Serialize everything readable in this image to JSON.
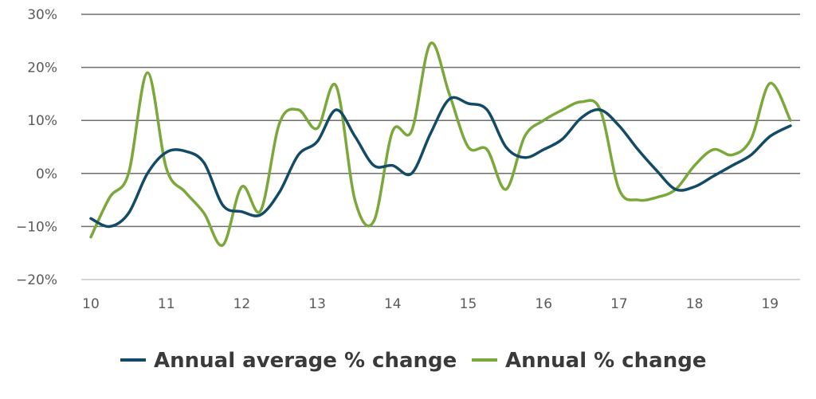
{
  "chart_data": {
    "type": "line",
    "x_tick_labels": [
      "10",
      "11",
      "12",
      "13",
      "14",
      "15",
      "16",
      "17",
      "18",
      "19"
    ],
    "y_tick_labels": [
      "30%",
      "20%",
      "10%",
      "0%",
      "−10%",
      "−20%"
    ],
    "ylim": [
      -20,
      30
    ],
    "xlim": [
      10,
      19.35
    ],
    "y_ticks": [
      30,
      20,
      10,
      0,
      -10,
      -20
    ],
    "grid": true,
    "legend_position": "bottom-center",
    "series": [
      {
        "name": "Annual average % change",
        "color": "#134a66",
        "x": [
          10.0,
          10.25,
          10.5,
          10.75,
          11.0,
          11.25,
          11.5,
          11.75,
          12.0,
          12.25,
          12.5,
          12.75,
          13.0,
          13.25,
          13.5,
          13.75,
          14.0,
          14.25,
          14.5,
          14.75,
          15.0,
          15.25,
          15.5,
          15.75,
          16.0,
          16.25,
          16.5,
          16.75,
          17.0,
          17.25,
          17.5,
          17.75,
          18.0,
          18.25,
          18.5,
          18.75,
          19.0,
          19.27
        ],
        "y": [
          -8.5,
          -10.0,
          -7.5,
          0.0,
          4.0,
          4.2,
          2.0,
          -6.0,
          -7.2,
          -7.8,
          -3.5,
          3.5,
          6.0,
          12.0,
          7.0,
          1.5,
          1.5,
          0.0,
          7.5,
          14.0,
          13.2,
          12.0,
          5.0,
          3.0,
          4.5,
          6.5,
          10.5,
          12.0,
          9.0,
          4.5,
          0.5,
          -3.0,
          -2.5,
          -0.5,
          1.5,
          3.5,
          7.0,
          9.0
        ]
      },
      {
        "name": "Annual % change",
        "color": "#7aa83a",
        "x": [
          10.0,
          10.25,
          10.5,
          10.75,
          11.0,
          11.25,
          11.5,
          11.75,
          12.0,
          12.25,
          12.5,
          12.75,
          13.0,
          13.25,
          13.5,
          13.75,
          14.0,
          14.25,
          14.5,
          14.75,
          15.0,
          15.25,
          15.5,
          15.75,
          16.0,
          16.25,
          16.5,
          16.75,
          17.0,
          17.25,
          17.5,
          17.75,
          18.0,
          18.25,
          18.5,
          18.75,
          19.0,
          19.27
        ],
        "y": [
          -12.0,
          -4.5,
          0.0,
          19.0,
          1.0,
          -3.5,
          -7.5,
          -13.5,
          -2.5,
          -7.0,
          9.5,
          12.0,
          8.5,
          16.5,
          -5.0,
          -9.0,
          8.0,
          8.0,
          24.5,
          15.0,
          5.0,
          4.5,
          -3.0,
          7.0,
          10.0,
          12.0,
          13.5,
          12.0,
          -3.0,
          -5.0,
          -4.5,
          -3.0,
          1.5,
          4.5,
          3.5,
          6.5,
          17.0,
          10.0
        ]
      }
    ]
  }
}
